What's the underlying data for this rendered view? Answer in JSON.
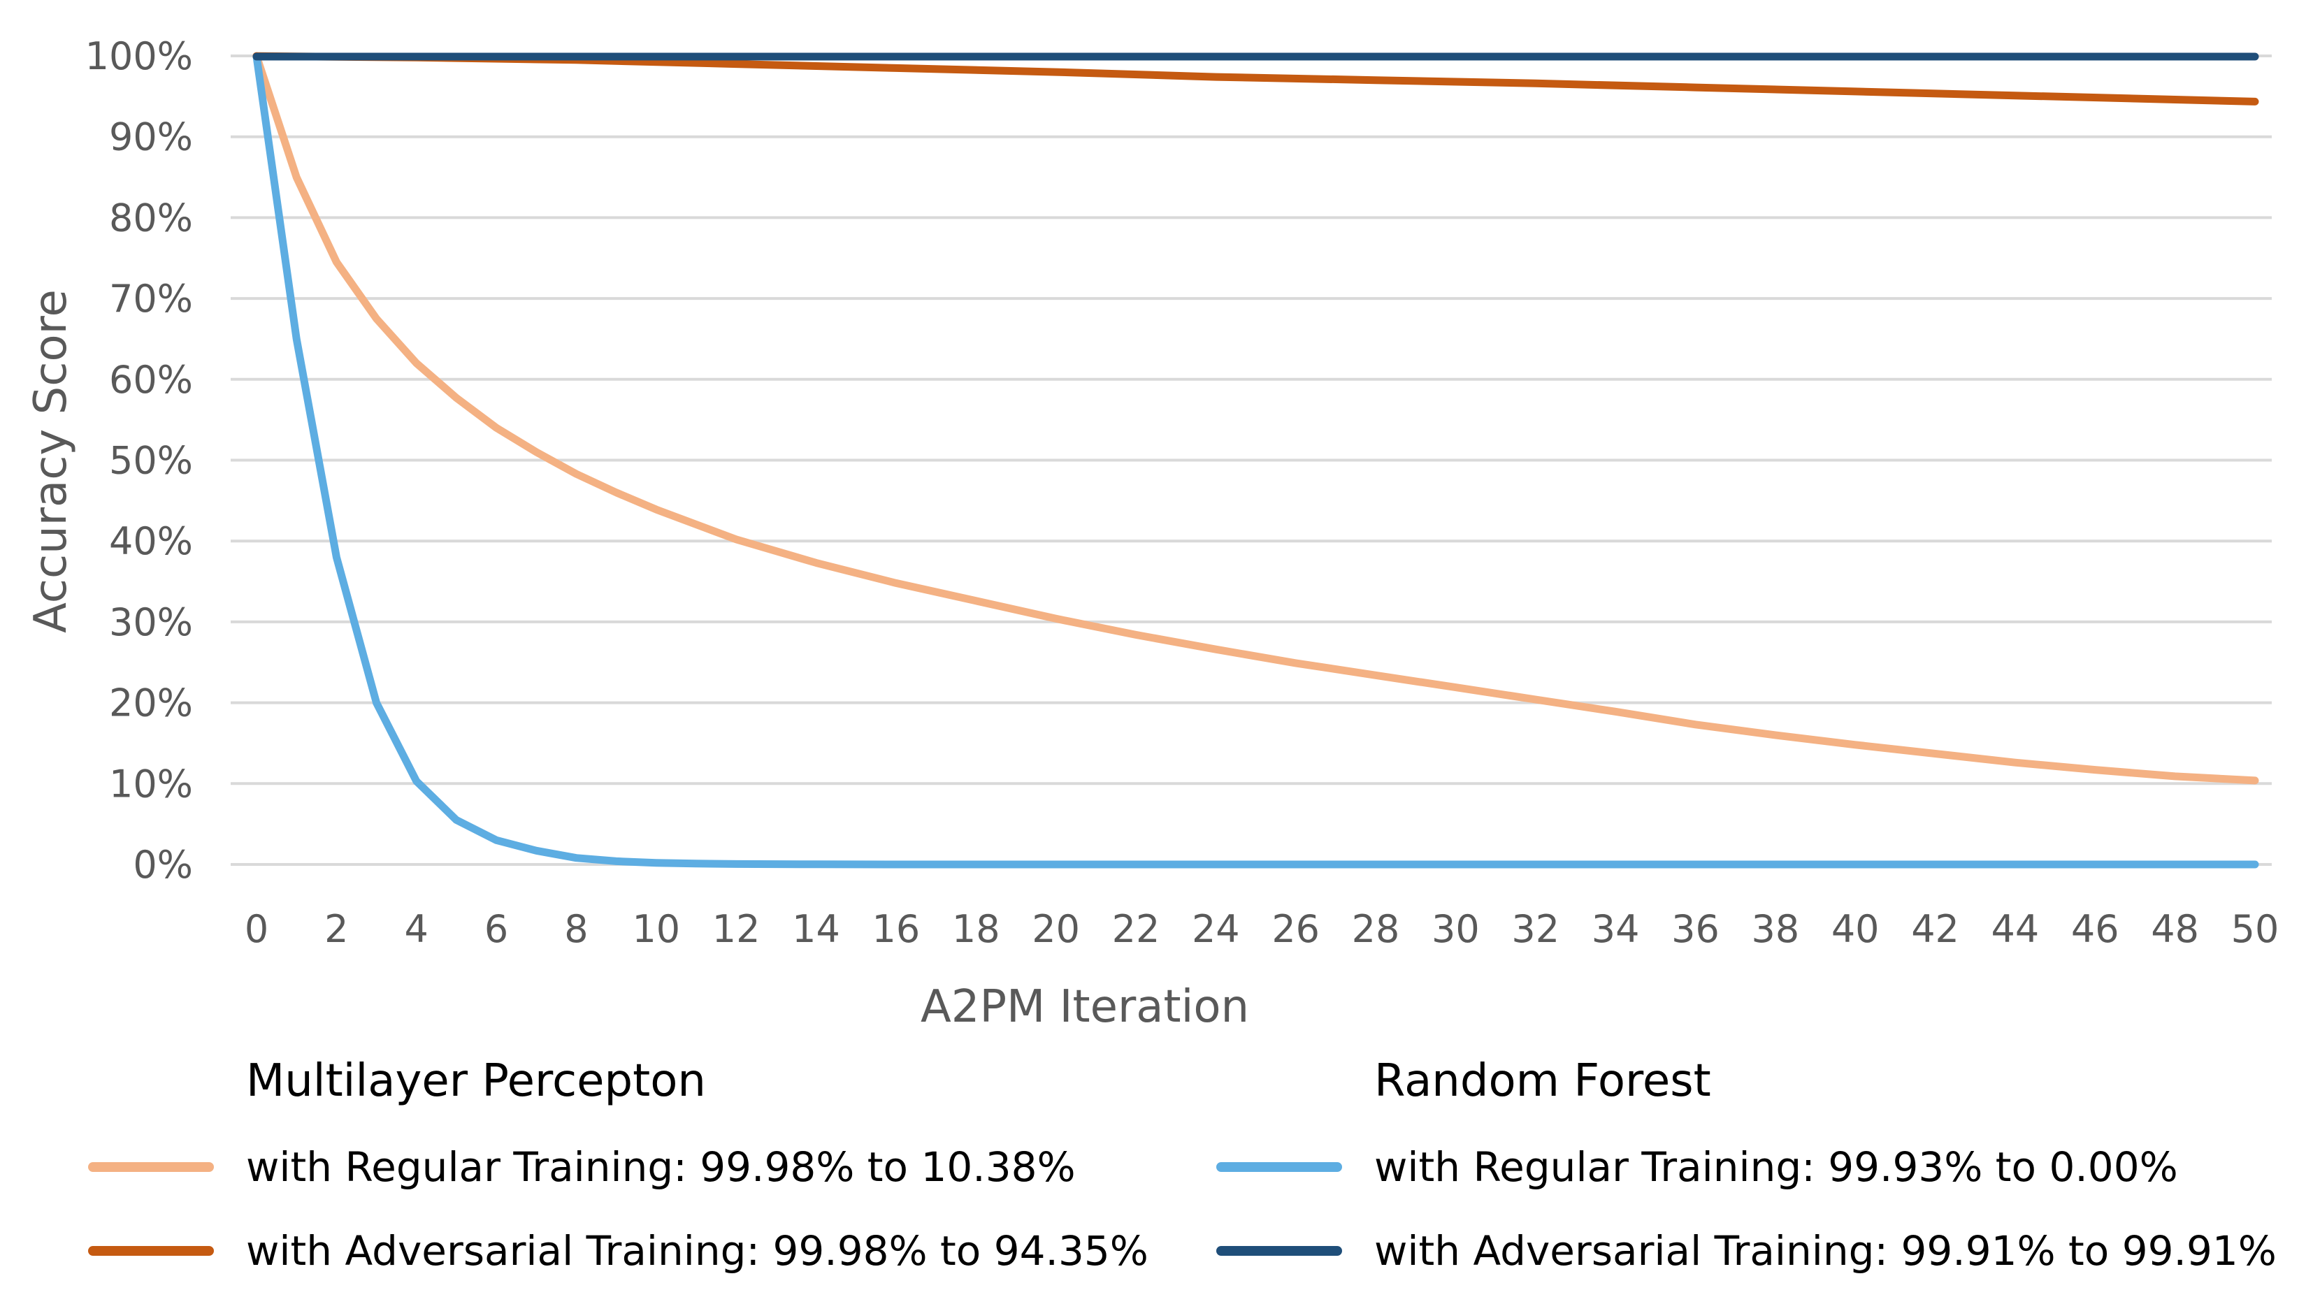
{
  "chart_data": {
    "type": "line",
    "title": "",
    "xlabel": "A2PM Iteration",
    "ylabel": "Accuracy Score",
    "xlim": [
      0,
      50
    ],
    "ylim": [
      0,
      100
    ],
    "x_ticks": [
      "0",
      "2",
      "4",
      "6",
      "8",
      "10",
      "12",
      "14",
      "16",
      "18",
      "20",
      "22",
      "24",
      "26",
      "28",
      "30",
      "32",
      "34",
      "36",
      "38",
      "40",
      "42",
      "44",
      "46",
      "48",
      "50"
    ],
    "y_ticks": [
      "0%",
      "10%",
      "20%",
      "30%",
      "40%",
      "50%",
      "60%",
      "70%",
      "80%",
      "90%",
      "100%"
    ],
    "grid": true,
    "series": [
      {
        "name": "MLP with Regular Training",
        "color": "#F4B183",
        "x": [
          0,
          1,
          2,
          3,
          4,
          5,
          6,
          7,
          8,
          9,
          10,
          12,
          14,
          16,
          18,
          20,
          22,
          24,
          26,
          28,
          30,
          32,
          34,
          36,
          38,
          40,
          42,
          44,
          46,
          48,
          50
        ],
        "values": [
          99.98,
          85,
          74.5,
          67.5,
          62,
          57.7,
          54,
          51,
          48.3,
          46,
          43.9,
          40.2,
          37.3,
          34.8,
          32.6,
          30.4,
          28.4,
          26.6,
          24.9,
          23.4,
          21.9,
          20.4,
          18.9,
          17.3,
          16.0,
          14.8,
          13.7,
          12.6,
          11.7,
          10.9,
          10.38
        ]
      },
      {
        "name": "MLP with Adversarial Training",
        "color": "#C55A11",
        "x": [
          0,
          4,
          8,
          12,
          16,
          20,
          24,
          28,
          32,
          36,
          40,
          44,
          48,
          50
        ],
        "values": [
          99.98,
          99.8,
          99.5,
          99.0,
          98.5,
          98.0,
          97.4,
          97.0,
          96.6,
          96.1,
          95.6,
          95.1,
          94.6,
          94.35
        ]
      },
      {
        "name": "RF with Regular Training",
        "color": "#5DADE2",
        "x": [
          0,
          1,
          2,
          3,
          4,
          5,
          6,
          7,
          8,
          9,
          10,
          11,
          12,
          14,
          16,
          20,
          30,
          40,
          50
        ],
        "values": [
          99.93,
          65,
          38,
          20,
          10.3,
          5.5,
          3,
          1.7,
          0.8,
          0.4,
          0.2,
          0.1,
          0.05,
          0.02,
          0,
          0,
          0,
          0,
          0.0
        ]
      },
      {
        "name": "RF with Adversarial Training",
        "color": "#1F4E79",
        "x": [
          0,
          10,
          20,
          30,
          40,
          50
        ],
        "values": [
          99.91,
          99.91,
          99.91,
          99.91,
          99.91,
          99.91
        ]
      }
    ]
  },
  "legend": {
    "mlp": {
      "title": "Multilayer Percepton",
      "regular": {
        "label": "with Regular Training:  99.98% to 10.38%",
        "color": "#F4B183"
      },
      "adversarial": {
        "label": "with Adversarial Training:  99.98% to 94.35%",
        "color": "#C55A11"
      }
    },
    "rf": {
      "title": "Random Forest",
      "regular": {
        "label": "with Regular Training:  99.93% to 0.00%",
        "color": "#5DADE2"
      },
      "adversarial": {
        "label": "with Adversarial Training:  99.91% to 99.91%",
        "color": "#1F4E79"
      }
    }
  }
}
